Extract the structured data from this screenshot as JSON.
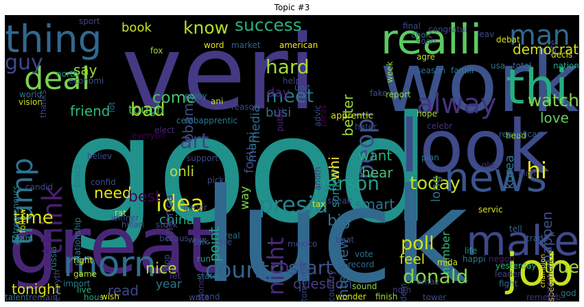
{
  "title": "Topic #3",
  "words": [
    {
      "text": "good",
      "color": "#21918c"
    },
    {
      "text": "luck",
      "color": "#31688e"
    },
    {
      "text": "veri",
      "color": "#443983"
    },
    {
      "text": "work",
      "color": "#3b528b"
    },
    {
      "text": "great",
      "color": "#482677"
    },
    {
      "text": "look",
      "color": "#3e4a89"
    },
    {
      "text": "realli",
      "color": "#5ec962"
    },
    {
      "text": "thing",
      "color": "#31688e"
    },
    {
      "text": "deal",
      "color": "#7ad151"
    },
    {
      "text": "trump",
      "color": "#2c728e"
    },
    {
      "text": "think",
      "color": "#481f70"
    },
    {
      "text": "news",
      "color": "#39558c"
    },
    {
      "text": "make",
      "color": "#3e4989"
    },
    {
      "text": "job",
      "color": "#c8e020"
    },
    {
      "text": "thi",
      "color": "#27ad81"
    },
    {
      "text": "morn",
      "color": "#2d708e"
    },
    {
      "text": "alway",
      "color": "#46327e"
    },
    {
      "text": "peopl",
      "color": "#3b528b"
    },
    {
      "text": "man",
      "color": "#31688e"
    },
    {
      "text": "success",
      "color": "#2ab07f"
    },
    {
      "text": "know",
      "color": "#b5de2b"
    },
    {
      "text": "book",
      "color": "#cae11f"
    },
    {
      "text": "guy",
      "color": "#3e4989"
    },
    {
      "text": "say",
      "color": "#a0da39"
    },
    {
      "text": "hard",
      "color": "#a5db36"
    },
    {
      "text": "idea",
      "color": "#d5e21a"
    },
    {
      "text": "art",
      "color": "#414487"
    },
    {
      "text": "meet",
      "color": "#2a788e"
    },
    {
      "text": "presid",
      "color": "#25838e"
    },
    {
      "text": "person",
      "color": "#1f9e89"
    },
    {
      "text": "countri",
      "color": "#33638d"
    },
    {
      "text": "donald",
      "color": "#86d549"
    },
    {
      "text": "start",
      "color": "#3b528b"
    },
    {
      "text": "poll",
      "color": "#d2e21b"
    },
    {
      "text": "today",
      "color": "#bddf26"
    },
    {
      "text": "time",
      "color": "#dde318"
    },
    {
      "text": "china",
      "color": "#20a486"
    },
    {
      "text": "tonight",
      "color": "#d8e219"
    },
    {
      "text": "nice",
      "color": "#b5de2b"
    },
    {
      "text": "point",
      "color": "#22a884"
    },
    {
      "text": "night",
      "color": "#482878"
    },
    {
      "text": "true",
      "color": "#a8db34"
    },
    {
      "text": "happen",
      "color": "#3b528b"
    },
    {
      "text": "watch",
      "color": "#7fd34e"
    },
    {
      "text": "love",
      "color": "#63cb5f"
    },
    {
      "text": "democrat",
      "color": "#d0e11c"
    },
    {
      "text": "obama",
      "color": "#3e4a89"
    },
    {
      "text": "hi",
      "color": "#eae51a"
    },
    {
      "text": "feel",
      "color": "#c2df23"
    },
    {
      "text": "question",
      "color": "#433e85"
    },
    {
      "text": "interview",
      "color": "#33638d"
    },
    {
      "text": "big",
      "color": "#2c728e"
    },
    {
      "text": "smart",
      "color": "#2a788e"
    },
    {
      "text": "hear",
      "color": "#46c06f"
    },
    {
      "text": "want",
      "color": "#29af7f"
    },
    {
      "text": "need",
      "color": "#e5e419"
    },
    {
      "text": "best",
      "color": "#440154"
    },
    {
      "text": "year",
      "color": "#2a788e"
    },
    {
      "text": "read",
      "color": "#3e4989"
    },
    {
      "text": "bad",
      "color": "#b2dd2d"
    },
    {
      "text": "come",
      "color": "#46c06f"
    },
    {
      "text": "friend",
      "color": "#32b67a"
    },
    {
      "text": "tough",
      "color": "#3fbc73"
    },
    {
      "text": "busi",
      "color": "#2e6f8e"
    },
    {
      "text": "day",
      "color": "#482475"
    },
    {
      "text": "better",
      "color": "#9bd93c"
    },
    {
      "text": "onli",
      "color": "#bade28"
    },
    {
      "text": "way",
      "color": "#7fd34e"
    },
    {
      "text": "mani",
      "color": "#2e6e8e"
    },
    {
      "text": "focu",
      "color": "#3e4989"
    },
    {
      "text": "media",
      "color": "#31688e"
    },
    {
      "text": "america",
      "color": "#453781"
    },
    {
      "text": "korea",
      "color": "#2a788e"
    },
    {
      "text": "long",
      "color": "#31688e"
    },
    {
      "text": "number",
      "color": "#35b779"
    },
    {
      "text": "someth",
      "color": "#21918c"
    },
    {
      "text": "whi",
      "color": "#fde725"
    },
    {
      "text": "apprentic",
      "color": "#d2e21b"
    },
    {
      "text": "report",
      "color": "#95d840"
    },
    {
      "text": "hope",
      "color": "#a8db34"
    },
    {
      "text": "head",
      "color": "#addc30"
    },
    {
      "text": "republican",
      "color": "#355f8d"
    },
    {
      "text": "high",
      "color": "#453781"
    },
    {
      "text": "trade",
      "color": "#35608d"
    },
    {
      "text": "negoti",
      "color": "#482173"
    },
    {
      "text": "life",
      "color": "#20a386"
    },
    {
      "text": "mida",
      "color": "#d8e219"
    },
    {
      "text": "vote",
      "color": "#2c728e"
    },
    {
      "text": "record",
      "color": "#31688e"
    },
    {
      "text": "sound",
      "color": "#8bd646"
    },
    {
      "text": "fight",
      "color": "#2e6e8e"
    },
    {
      "text": "god",
      "color": "#2a788e"
    },
    {
      "text": "speech",
      "color": "#e7e419"
    },
    {
      "text": "champion",
      "color": "#fde725"
    },
    {
      "text": "wonder",
      "color": "#d8e219"
    },
    {
      "text": "finish",
      "color": "#a0da39"
    },
    {
      "text": "right",
      "color": "#dde318"
    },
    {
      "text": "game",
      "color": "#b2dd2d"
    },
    {
      "text": "live",
      "color": "#2db27d"
    },
    {
      "text": "hous",
      "color": "#20a386"
    },
    {
      "text": "wish",
      "color": "#dde318"
    },
    {
      "text": "stand",
      "color": "#3e4989"
    },
    {
      "text": "state",
      "color": "#2a788e"
    },
    {
      "text": "run",
      "color": "#21918c"
    },
    {
      "text": "let",
      "color": "#46337f"
    },
    {
      "text": "care",
      "color": "#3b528b"
    },
    {
      "text": "real",
      "color": "#2c728e"
    },
    {
      "text": "talk",
      "color": "#355f8d"
    },
    {
      "text": "stock",
      "color": "#3e4989"
    },
    {
      "text": "becaus",
      "color": "#404688"
    },
    {
      "text": "russia",
      "color": "#2a788e"
    },
    {
      "text": "team",
      "color": "#1f9a8a"
    },
    {
      "text": "rat",
      "color": "#cae11f"
    },
    {
      "text": "elect",
      "color": "#482878"
    },
    {
      "text": "enjoy",
      "color": "#2a788e"
    },
    {
      "text": "vision",
      "color": "#c8e020"
    },
    {
      "text": "world",
      "color": "#2d718e"
    },
    {
      "text": "north",
      "color": "#21918c"
    },
    {
      "text": "economi",
      "color": "#3b528b"
    },
    {
      "text": "lot",
      "color": "#31688e"
    },
    {
      "text": "ani",
      "color": "#c2df23"
    },
    {
      "text": "word",
      "color": "#e2e418"
    },
    {
      "text": "market",
      "color": "#33638d"
    },
    {
      "text": "american",
      "color": "#fde725"
    },
    {
      "text": "fox",
      "color": "#a2da37"
    },
    {
      "text": "sport",
      "color": "#414487"
    },
    {
      "text": "reason",
      "color": "#3e4989"
    },
    {
      "text": "help",
      "color": "#404588"
    },
    {
      "text": "unit",
      "color": "#355f8d"
    },
    {
      "text": "season",
      "color": "#2c728e"
    },
    {
      "text": "famili",
      "color": "#2a788e"
    },
    {
      "text": "usa",
      "color": "#2a788e"
    },
    {
      "text": "total",
      "color": "#2e6e8e"
    },
    {
      "text": "nation",
      "color": "#22a884"
    },
    {
      "text": "decis",
      "color": "#d2e21b"
    },
    {
      "text": "week",
      "color": "#a0da39"
    },
    {
      "text": "agre",
      "color": "#c2df23"
    },
    {
      "text": "choic",
      "color": "#2a788e"
    },
    {
      "text": "fake",
      "color": "#3b528b"
    },
    {
      "text": "pleas",
      "color": "#440154"
    },
    {
      "text": "advic",
      "color": "#3e4989"
    },
    {
      "text": "public",
      "color": "#482878"
    },
    {
      "text": "plan",
      "color": "#2a788e"
    },
    {
      "text": "old",
      "color": "#46327e"
    },
    {
      "text": "celebr",
      "color": "#46327e"
    },
    {
      "text": "hater",
      "color": "#3e4989"
    },
    {
      "text": "servic",
      "color": "#d8e219"
    },
    {
      "text": "tell",
      "color": "#31688e"
    },
    {
      "text": "happi",
      "color": "#2a788e"
    },
    {
      "text": "yesterday",
      "color": "#35b779"
    },
    {
      "text": "leader",
      "color": "#3e4989"
    },
    {
      "text": "rememb",
      "color": "#46327e"
    },
    {
      "text": "statement",
      "color": "#46327e"
    },
    {
      "text": "tower",
      "color": "#3e4989"
    },
    {
      "text": "dem",
      "color": "#3b528b"
    },
    {
      "text": "amaz",
      "color": "#3e4989"
    },
    {
      "text": "noth",
      "color": "#443983"
    },
    {
      "text": "tomorrow",
      "color": "#3e4989"
    },
    {
      "text": "beat",
      "color": "#3e4989"
    },
    {
      "text": "mexico",
      "color": "#3e4989"
    },
    {
      "text": "country",
      "color": "#3e4989"
    },
    {
      "text": "tax",
      "color": "#d5e21a"
    },
    {
      "text": "sign",
      "color": "#2a788e"
    },
    {
      "text": "speak",
      "color": "#3e4989"
    },
    {
      "text": "anoth",
      "color": "#46327e"
    },
    {
      "text": "pick",
      "color": "#3e4989"
    },
    {
      "text": "gener",
      "color": "#3e4989"
    },
    {
      "text": "money",
      "color": "#482878"
    },
    {
      "text": "write",
      "color": "#3e4989"
    },
    {
      "text": "import",
      "color": "#2a788e"
    },
    {
      "text": "everyth",
      "color": "#3e4989"
    },
    {
      "text": "wow",
      "color": "#3e4989"
    },
    {
      "text": "stop",
      "color": "#3e4989"
    },
    {
      "text": "hillari",
      "color": "#3e4989"
    },
    {
      "text": "winner",
      "color": "#3e4989"
    },
    {
      "text": "follow",
      "color": "#d2e21b"
    },
    {
      "text": "candid",
      "color": "#3e4989"
    },
    {
      "text": "entrepreneurs",
      "color": "#2a788e"
    },
    {
      "text": "relationship",
      "color": "#2a788e"
    },
    {
      "text": "touch",
      "color": "#2a788e"
    },
    {
      "text": "confid",
      "color": "#3e4989"
    },
    {
      "text": "believ",
      "color": "#3e4989"
    },
    {
      "text": "support",
      "color": "#3e4989"
    },
    {
      "text": "everyon",
      "color": "#440154"
    },
    {
      "text": "celebapprentic",
      "color": "#2a788e"
    },
    {
      "text": "thanks",
      "color": "#3e4989"
    },
    {
      "text": "talent",
      "color": "#2a788e"
    },
    {
      "text": "remain",
      "color": "#3e4989"
    },
    {
      "text": "soon",
      "color": "#3e4989"
    },
    {
      "text": "final",
      "color": "#3e4989"
    },
    {
      "text": "leav",
      "color": "#3e4989"
    },
    {
      "text": "congratul",
      "color": "#3e4989"
    },
    {
      "text": "debat",
      "color": "#d2e21b"
    },
    {
      "text": "late",
      "color": "#3e4989"
    }
  ]
}
